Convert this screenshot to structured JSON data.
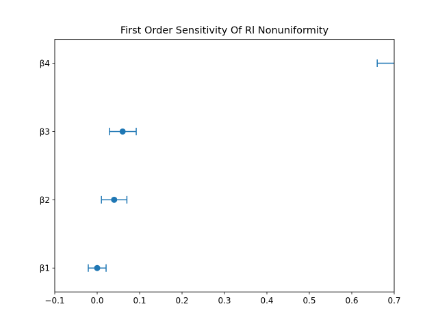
{
  "chart_data": {
    "type": "scatter",
    "title": "First Order Sensitivity Of Rl Nonuniformity",
    "xlabel": "",
    "ylabel": "",
    "xlim": [
      -0.1,
      0.7
    ],
    "x_ticks": [
      -0.1,
      0.0,
      0.1,
      0.2,
      0.3,
      0.4,
      0.5,
      0.6,
      0.7
    ],
    "x_tick_labels": [
      "−0.1",
      "0.0",
      "0.1",
      "0.2",
      "0.3",
      "0.4",
      "0.5",
      "0.6",
      "0.7"
    ],
    "categories": [
      "β1",
      "β2",
      "β3",
      "β4"
    ],
    "points": [
      {
        "label": "β1",
        "value": 0.0,
        "ci_low": -0.021,
        "ci_high": 0.021
      },
      {
        "label": "β2",
        "value": 0.04,
        "ci_low": 0.01,
        "ci_high": 0.07
      },
      {
        "label": "β3",
        "value": 0.06,
        "ci_low": 0.029,
        "ci_high": 0.092
      },
      {
        "label": "β4",
        "value": 0.71,
        "ci_low": 0.66,
        "ci_high": 0.76
      }
    ],
    "color": "#1f77b4",
    "grid": false
  }
}
